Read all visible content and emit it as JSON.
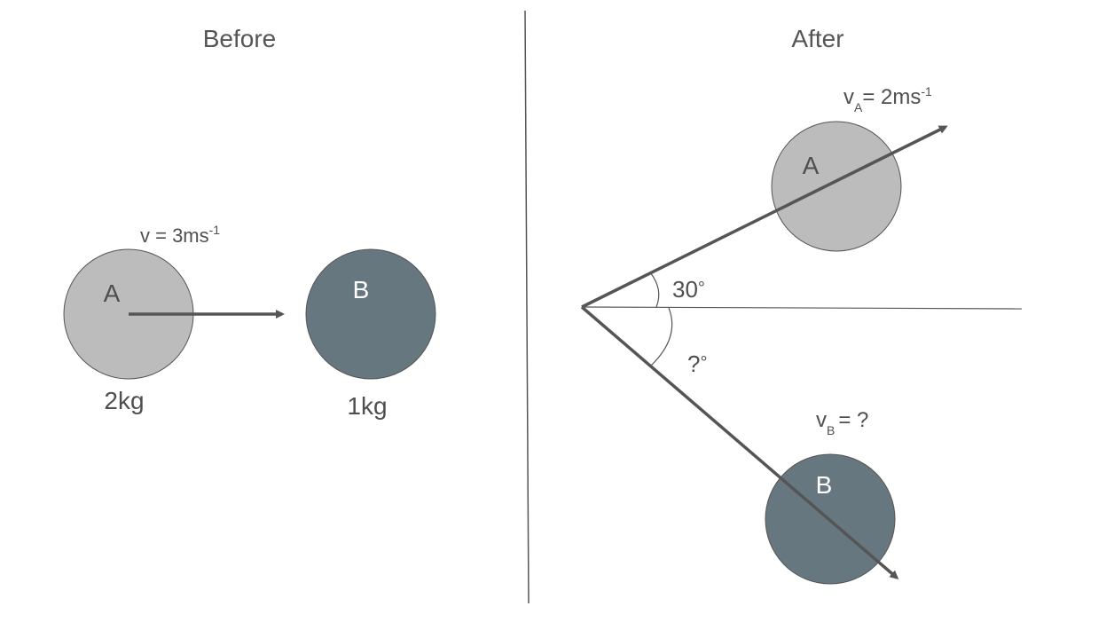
{
  "panels": {
    "before": {
      "title": "Before"
    },
    "after": {
      "title": "After"
    }
  },
  "before": {
    "ball_a": {
      "letter": "A",
      "mass": "2kg"
    },
    "ball_b": {
      "letter": "B",
      "mass": "1kg"
    },
    "velocity": {
      "base": "v = 3ms",
      "exponent": "-1"
    }
  },
  "after": {
    "ball_a": {
      "letter": "A"
    },
    "ball_b": {
      "letter": "B"
    },
    "velocity_a": {
      "symbol": "v",
      "subscript": "A",
      "value": "= 2ms",
      "exponent": "-1"
    },
    "velocity_b": {
      "symbol": "v",
      "subscript": "B",
      "value": "= ?"
    },
    "angle_a": {
      "value": "30",
      "degree": "°"
    },
    "angle_b": {
      "value": "?",
      "degree": "°"
    }
  },
  "colors": {
    "ball_a_fill": "#bcbcbc",
    "ball_b_fill": "#67777f",
    "outline": "#555555",
    "arrow": "#555555",
    "text": "#4f4f4f"
  }
}
